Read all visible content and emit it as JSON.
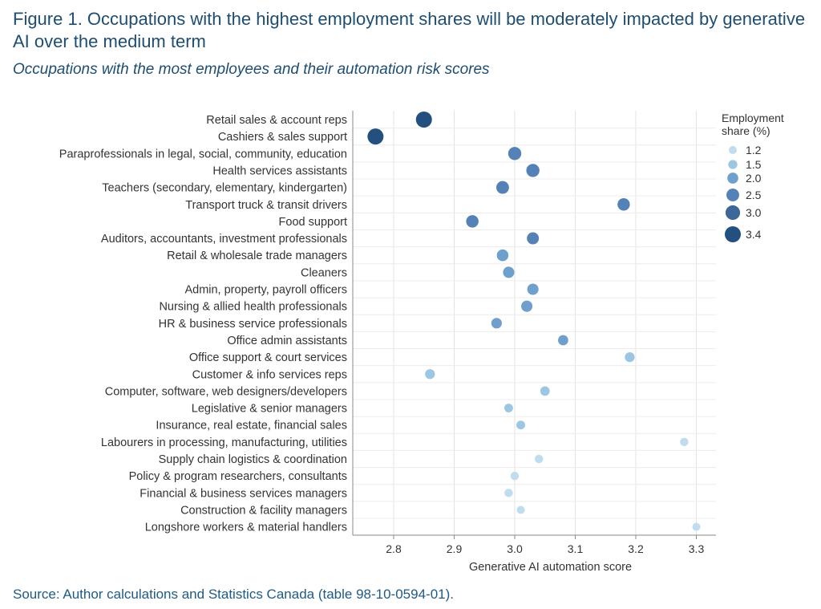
{
  "title": "Figure 1. Occupations with the highest employment shares will be moderately impacted by generative AI over the medium term",
  "subtitle": "Occupations with the most employees and their automation risk scores",
  "source": "Source: Author calculations and Statistics Canada (table 98-10-0594-01).",
  "chart_data": {
    "type": "scatter",
    "title": "Figure 1. Occupations with the highest employment shares will be moderately impacted by generative AI over the medium term",
    "subtitle": "Occupations with the most employees and their automation risk scores",
    "xlabel": "Generative AI automation score",
    "ylabel": "",
    "xlim": [
      2.73,
      3.33
    ],
    "xticks": [
      2.8,
      2.9,
      3.0,
      3.1,
      3.2,
      3.3
    ],
    "xtick_labels": [
      "2.8",
      "2.9",
      "3.0",
      "3.1",
      "3.2",
      "3.3"
    ],
    "grid": "vertical and horizontal",
    "legend": {
      "title": "Employment share (%)",
      "position": "right",
      "entries": [
        {
          "label": "1.2",
          "value": 1.2,
          "color": "#c0dcef"
        },
        {
          "label": "1.5",
          "value": 1.5,
          "color": "#9cc6e3"
        },
        {
          "label": "2.0",
          "value": 2.0,
          "color": "#6f9fcc"
        },
        {
          "label": "2.5",
          "value": 2.5,
          "color": "#5582b6"
        },
        {
          "label": "3.0",
          "value": 3.0,
          "color": "#3d6699"
        },
        {
          "label": "3.4",
          "value": 3.4,
          "color": "#24507f"
        }
      ]
    },
    "points": [
      {
        "category": "Retail sales & account reps",
        "score": 2.85,
        "share": 3.4
      },
      {
        "category": "Cashiers & sales support",
        "score": 2.77,
        "share": 3.4
      },
      {
        "category": "Paraprofessionals in legal, social, community, education",
        "score": 3.0,
        "share": 2.6
      },
      {
        "category": "Health services assistants",
        "score": 3.03,
        "share": 2.6
      },
      {
        "category": "Teachers (secondary, elementary, kindergarten)",
        "score": 2.98,
        "share": 2.5
      },
      {
        "category": "Transport truck & transit drivers",
        "score": 3.18,
        "share": 2.4
      },
      {
        "category": "Food support",
        "score": 2.93,
        "share": 2.4
      },
      {
        "category": "Auditors, accountants, investment professionals",
        "score": 3.03,
        "share": 2.3
      },
      {
        "category": "Retail & wholesale trade managers",
        "score": 2.98,
        "share": 2.2
      },
      {
        "category": "Cleaners",
        "score": 2.99,
        "share": 2.1
      },
      {
        "category": "Admin, property, payroll officers",
        "score": 3.03,
        "share": 2.1
      },
      {
        "category": "Nursing & allied health professionals",
        "score": 3.02,
        "share": 2.1
      },
      {
        "category": "HR & business service professionals",
        "score": 2.97,
        "share": 1.9
      },
      {
        "category": "Office admin assistants",
        "score": 3.08,
        "share": 1.8
      },
      {
        "category": "Office support & court services",
        "score": 3.19,
        "share": 1.7
      },
      {
        "category": "Customer & info services reps",
        "score": 2.86,
        "share": 1.7
      },
      {
        "category": "Computer, software, web designers/developers",
        "score": 3.05,
        "share": 1.6
      },
      {
        "category": "Legislative & senior managers",
        "score": 2.99,
        "share": 1.4
      },
      {
        "category": "Insurance, real estate, financial sales",
        "score": 3.01,
        "share": 1.4
      },
      {
        "category": "Labourers in processing, manufacturing, utilities",
        "score": 3.28,
        "share": 1.3
      },
      {
        "category": "Supply chain logistics & coordination",
        "score": 3.04,
        "share": 1.3
      },
      {
        "category": "Policy & program researchers, consultants",
        "score": 3.0,
        "share": 1.3
      },
      {
        "category": "Financial & business services managers",
        "score": 2.99,
        "share": 1.3
      },
      {
        "category": "Construction & facility managers",
        "score": 3.01,
        "share": 1.2
      },
      {
        "category": "Longshore workers & material handlers",
        "score": 3.3,
        "share": 1.2
      }
    ]
  }
}
